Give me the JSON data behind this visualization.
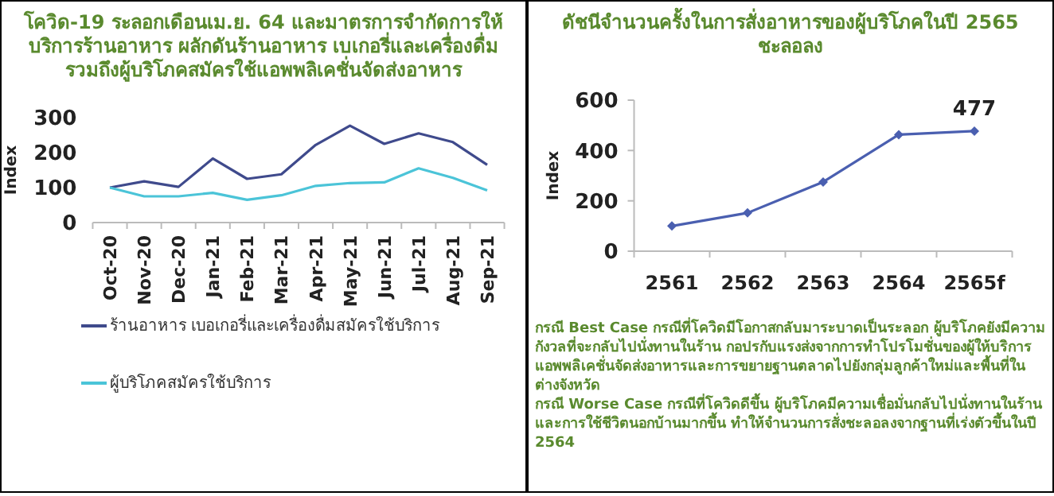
{
  "chart_data": [
    {
      "type": "line",
      "title": "โควิด-19 ระลอกเดือนเม.ย. 64 และมาตรการจำกัดการให้บริการร้านอาหาร ผลักดันร้านอาหาร เบเกอรี่และเครื่องดื่ม รวมถึงผู้บริโภคสมัครใช้แอพพลิเคชั่นจัดส่งอาหาร",
      "ylabel": "Index",
      "categories": [
        "Oct-20",
        "Nov-20",
        "Dec-20",
        "Jan-21",
        "Feb-21",
        "Mar-21",
        "Apr-21",
        "May-21",
        "Jun-21",
        "Jul-21",
        "Aug-21",
        "Sep-21"
      ],
      "series": [
        {
          "name": "ร้านอาหาร เบอเกอรี่และเครื่องดื่มสมัครใช้บริการ",
          "color": "#3f4a8c",
          "values": [
            100,
            118,
            102,
            183,
            125,
            138,
            222,
            277,
            225,
            255,
            230,
            165
          ]
        },
        {
          "name": "ผู้บริโภคสมัครใช้บริการ",
          "color": "#4bc4d8",
          "values": [
            100,
            75,
            75,
            85,
            65,
            78,
            105,
            113,
            115,
            155,
            128,
            92
          ]
        }
      ],
      "ylim": [
        0,
        300
      ],
      "yticks": [
        0,
        100,
        200,
        300
      ],
      "grid": false,
      "legend": "bottom",
      "marker": "none"
    },
    {
      "type": "line",
      "title": "ดัชนีจำนวนครั้งในการสั่งอาหารของผู้บริโภคในปี 2565 ชะลอลง",
      "ylabel": "Index",
      "categories": [
        "2561",
        "2562",
        "2563",
        "2564",
        "2565f"
      ],
      "series": [
        {
          "color": "#4a5fb0",
          "values": [
            100,
            152,
            275,
            463,
            477
          ],
          "value_labels": [
            null,
            null,
            null,
            null,
            "477"
          ]
        }
      ],
      "ylim": [
        0,
        600
      ],
      "yticks": [
        0,
        200,
        400,
        600
      ],
      "grid": false,
      "legend": false,
      "marker": "diamond",
      "annotations": [
        "กรณี Best Case กรณีที่โควิดมีโอกาสกลับมาระบาดเป็นระลอก ผู้บริโภคยังมีความกังวลที่จะกลับไปนั่งทานในร้าน กอปรกับแรงส่งจากการทำโปรโมชั่นของผู้ให้บริการแอพพลิเคชั่นจัดส่งอาหารและการขยายฐานตลาดไปยังกลุ่มลูกค้าใหม่และพื้นที่ในต่างจังหวัด",
        "กรณี Worse Case กรณีที่โควิดดีขึ้น ผู้บริโภคมีความเชื่อมั่นกลับไปนั่งทานในร้านและการใช้ชีวิตนอกบ้านมากขึ้น ทำให้จำนวนการสั่งชะลอลงจากฐานที่เร่งตัวขึ้นในปี 2564"
      ]
    }
  ]
}
